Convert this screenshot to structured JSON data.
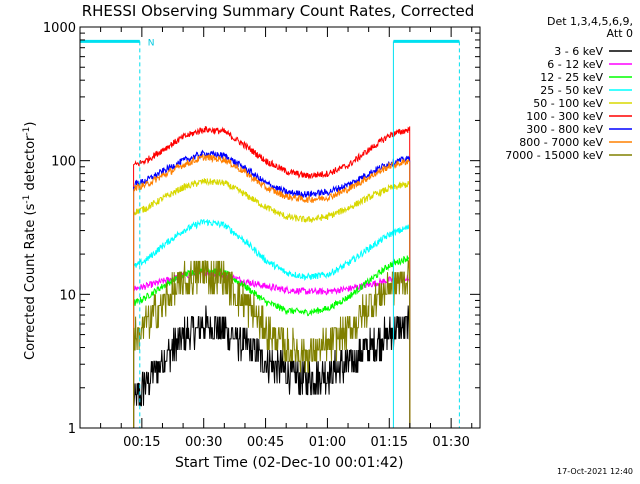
{
  "chart_data": {
    "type": "line",
    "title": "RHESSI Observing Summary Count Rates, Corrected",
    "xlabel": "Start Time (02-Dec-10 00:01:42)",
    "ylabel_main": "Corrected Count Rate (s",
    "ylabel_sup1": "-1",
    "ylabel_mid": " detector",
    "ylabel_sup2": "-1",
    "ylabel_end": ")",
    "yscale": "log",
    "ylim": [
      1,
      1000
    ],
    "xlim_minutes": [
      0,
      97
    ],
    "xticks": [
      {
        "minute": 15,
        "label": "00:15"
      },
      {
        "minute": 30,
        "label": "00:30"
      },
      {
        "minute": 45,
        "label": "00:45"
      },
      {
        "minute": 60,
        "label": "01:00"
      },
      {
        "minute": 75,
        "label": "01:15"
      },
      {
        "minute": 90,
        "label": "01:30"
      }
    ],
    "yticks": [
      {
        "value": 1,
        "label": "1"
      },
      {
        "value": 10,
        "label": "10"
      },
      {
        "value": 100,
        "label": "100"
      },
      {
        "value": 1000,
        "label": "1000"
      }
    ],
    "legend_header": [
      "Det 1,3,4,5,6,9,",
      "Att 0"
    ],
    "legend_position": "right",
    "series": [
      {
        "name": "3 - 6 keV",
        "color": "#000000",
        "points": [
          [
            13,
            1.5
          ],
          [
            16,
            2.2
          ],
          [
            20,
            3.2
          ],
          [
            25,
            4.8
          ],
          [
            30,
            5.8
          ],
          [
            35,
            5.5
          ],
          [
            40,
            4.2
          ],
          [
            45,
            3.2
          ],
          [
            50,
            2.6
          ],
          [
            55,
            2.3
          ],
          [
            60,
            2.5
          ],
          [
            65,
            3.0
          ],
          [
            70,
            4.0
          ],
          [
            75,
            5.0
          ],
          [
            80,
            5.8
          ]
        ]
      },
      {
        "name": "6 - 12 keV",
        "color": "#ff00ff",
        "points": [
          [
            13,
            11
          ],
          [
            16,
            11.5
          ],
          [
            20,
            12.5
          ],
          [
            25,
            13.8
          ],
          [
            30,
            14.5
          ],
          [
            35,
            14
          ],
          [
            40,
            12.5
          ],
          [
            45,
            11.5
          ],
          [
            50,
            10.8
          ],
          [
            55,
            10.5
          ],
          [
            60,
            10.5
          ],
          [
            65,
            11
          ],
          [
            70,
            11.8
          ],
          [
            75,
            12.8
          ],
          [
            80,
            13
          ]
        ]
      },
      {
        "name": "12 - 25 keV",
        "color": "#00ff00",
        "points": [
          [
            13,
            8.5
          ],
          [
            16,
            9.5
          ],
          [
            20,
            11.5
          ],
          [
            25,
            14
          ],
          [
            30,
            15.5
          ],
          [
            35,
            14.5
          ],
          [
            40,
            11.5
          ],
          [
            45,
            8.8
          ],
          [
            50,
            7.6
          ],
          [
            55,
            7.3
          ],
          [
            60,
            7.8
          ],
          [
            65,
            9.5
          ],
          [
            70,
            12.5
          ],
          [
            75,
            16.5
          ],
          [
            80,
            19
          ]
        ]
      },
      {
        "name": "25 - 50 keV",
        "color": "#00ffff",
        "points": [
          [
            13,
            16
          ],
          [
            16,
            18
          ],
          [
            20,
            23
          ],
          [
            25,
            30
          ],
          [
            30,
            35
          ],
          [
            35,
            33
          ],
          [
            40,
            25
          ],
          [
            45,
            18
          ],
          [
            50,
            14.5
          ],
          [
            55,
            13.5
          ],
          [
            60,
            14
          ],
          [
            65,
            17
          ],
          [
            70,
            22
          ],
          [
            75,
            28
          ],
          [
            80,
            32
          ]
        ]
      },
      {
        "name": "50 - 100 keV",
        "color": "#d8d800",
        "points": [
          [
            13,
            41
          ],
          [
            16,
            44
          ],
          [
            20,
            52
          ],
          [
            25,
            63
          ],
          [
            30,
            70
          ],
          [
            35,
            68
          ],
          [
            40,
            56
          ],
          [
            45,
            45
          ],
          [
            50,
            38
          ],
          [
            55,
            36
          ],
          [
            60,
            38
          ],
          [
            65,
            44
          ],
          [
            70,
            53
          ],
          [
            75,
            62
          ],
          [
            80,
            67
          ]
        ]
      },
      {
        "name": "100 - 300 keV",
        "color": "#ff0000",
        "points": [
          [
            13,
            92
          ],
          [
            16,
            100
          ],
          [
            20,
            120
          ],
          [
            25,
            150
          ],
          [
            30,
            172
          ],
          [
            35,
            165
          ],
          [
            40,
            130
          ],
          [
            45,
            100
          ],
          [
            50,
            83
          ],
          [
            55,
            77
          ],
          [
            60,
            80
          ],
          [
            65,
            92
          ],
          [
            70,
            120
          ],
          [
            75,
            155
          ],
          [
            80,
            172
          ]
        ]
      },
      {
        "name": "300 - 800 keV",
        "color": "#0000ff",
        "points": [
          [
            13,
            66
          ],
          [
            16,
            71
          ],
          [
            20,
            83
          ],
          [
            25,
            100
          ],
          [
            30,
            113
          ],
          [
            35,
            109
          ],
          [
            40,
            88
          ],
          [
            45,
            68
          ],
          [
            50,
            58
          ],
          [
            55,
            56
          ],
          [
            60,
            58
          ],
          [
            65,
            66
          ],
          [
            70,
            80
          ],
          [
            75,
            96
          ],
          [
            80,
            104
          ]
        ]
      },
      {
        "name": "800 - 7000 keV",
        "color": "#ff8000",
        "points": [
          [
            13,
            62
          ],
          [
            16,
            66
          ],
          [
            20,
            77
          ],
          [
            25,
            93
          ],
          [
            30,
            106
          ],
          [
            35,
            102
          ],
          [
            40,
            82
          ],
          [
            45,
            63
          ],
          [
            50,
            54
          ],
          [
            55,
            51
          ],
          [
            60,
            53
          ],
          [
            65,
            61
          ],
          [
            70,
            75
          ],
          [
            75,
            91
          ],
          [
            80,
            100
          ]
        ]
      },
      {
        "name": "7000 - 15000 keV",
        "color": "#808000",
        "points": [
          [
            13,
            4.5
          ],
          [
            16,
            6
          ],
          [
            20,
            8.5
          ],
          [
            25,
            12
          ],
          [
            30,
            14.5
          ],
          [
            35,
            13
          ],
          [
            40,
            8.5
          ],
          [
            45,
            5.5
          ],
          [
            50,
            4
          ],
          [
            55,
            3.6
          ],
          [
            60,
            4
          ],
          [
            65,
            5.3
          ],
          [
            70,
            8
          ],
          [
            75,
            11.5
          ],
          [
            80,
            13.5
          ]
        ]
      }
    ],
    "flag_label": "N",
    "flag_level": 780,
    "flag_segments_minutes": [
      [
        0,
        14.5
      ],
      [
        76,
        92
      ]
    ],
    "vertical_lines_solid_minutes": [
      0,
      76
    ],
    "vertical_lines_dashed_minutes": [
      14.5,
      92
    ]
  },
  "footer": {
    "timestamp": "17-Oct-2021 12:40"
  }
}
